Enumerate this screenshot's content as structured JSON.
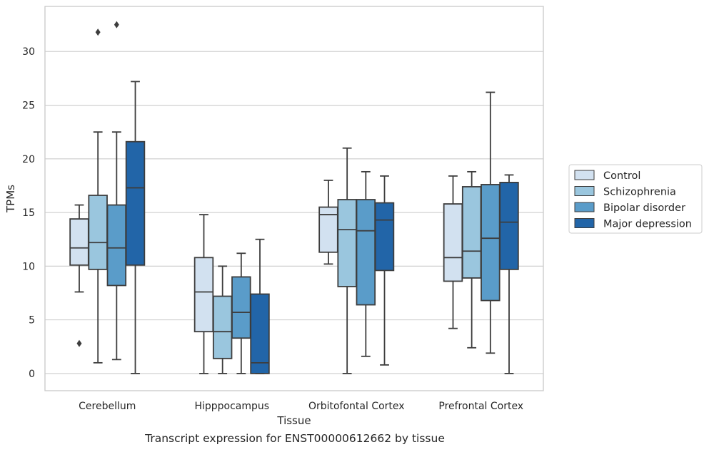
{
  "caption": "Transcript expression for ENST00000612662 by tissue",
  "chart_data": {
    "type": "box",
    "title": "",
    "xlabel": "Tissue",
    "ylabel": "TPMs",
    "ylim": [
      -1.6,
      34.2
    ],
    "yticks": [
      0,
      5,
      10,
      15,
      20,
      25,
      30
    ],
    "grid": true,
    "legend_position": "right",
    "categories": [
      "Cerebellum",
      "Hipppocampus",
      "Orbitofontal Cortex",
      "Prefrontal Cortex"
    ],
    "series": [
      {
        "name": "Control",
        "color": "#d2e1f0",
        "boxes": [
          {
            "whislo": 7.6,
            "q1": 10.1,
            "med": 11.7,
            "q3": 14.4,
            "whishi": 15.7,
            "fliers": [
              2.8
            ]
          },
          {
            "whislo": 0.0,
            "q1": 3.9,
            "med": 7.6,
            "q3": 10.8,
            "whishi": 14.8,
            "fliers": []
          },
          {
            "whislo": 10.2,
            "q1": 11.3,
            "med": 14.8,
            "q3": 15.5,
            "whishi": 18.0,
            "fliers": []
          },
          {
            "whislo": 4.2,
            "q1": 8.6,
            "med": 10.8,
            "q3": 15.8,
            "whishi": 18.4,
            "fliers": []
          }
        ]
      },
      {
        "name": "Schizophrenia",
        "color": "#9ac6de",
        "boxes": [
          {
            "whislo": 1.0,
            "q1": 9.7,
            "med": 12.2,
            "q3": 16.6,
            "whishi": 22.5,
            "fliers": [
              31.8
            ]
          },
          {
            "whislo": 0.0,
            "q1": 1.4,
            "med": 3.9,
            "q3": 7.2,
            "whishi": 10.0,
            "fliers": []
          },
          {
            "whislo": 0.0,
            "q1": 8.1,
            "med": 13.4,
            "q3": 16.2,
            "whishi": 21.0,
            "fliers": []
          },
          {
            "whislo": 2.4,
            "q1": 8.9,
            "med": 11.4,
            "q3": 17.4,
            "whishi": 18.8,
            "fliers": []
          }
        ]
      },
      {
        "name": "Bipolar disorder",
        "color": "#5a9cc9",
        "boxes": [
          {
            "whislo": 1.3,
            "q1": 8.2,
            "med": 11.7,
            "q3": 15.7,
            "whishi": 22.5,
            "fliers": [
              32.5
            ]
          },
          {
            "whislo": 0.0,
            "q1": 3.3,
            "med": 5.7,
            "q3": 9.0,
            "whishi": 11.2,
            "fliers": []
          },
          {
            "whislo": 1.6,
            "q1": 6.4,
            "med": 13.3,
            "q3": 16.2,
            "whishi": 18.8,
            "fliers": []
          },
          {
            "whislo": 1.9,
            "q1": 6.8,
            "med": 12.6,
            "q3": 17.6,
            "whishi": 26.2,
            "fliers": []
          }
        ]
      },
      {
        "name": "Major depression",
        "color": "#2265a8",
        "boxes": [
          {
            "whislo": 0.0,
            "q1": 10.1,
            "med": 17.3,
            "q3": 21.6,
            "whishi": 27.2,
            "fliers": []
          },
          {
            "whislo": 0.0,
            "q1": 0.0,
            "med": 1.0,
            "q3": 7.4,
            "whishi": 12.5,
            "fliers": []
          },
          {
            "whislo": 0.8,
            "q1": 9.6,
            "med": 14.3,
            "q3": 15.9,
            "whishi": 18.4,
            "fliers": []
          },
          {
            "whislo": 0.0,
            "q1": 9.7,
            "med": 14.1,
            "q3": 17.8,
            "whishi": 18.5,
            "fliers": []
          }
        ]
      }
    ]
  }
}
